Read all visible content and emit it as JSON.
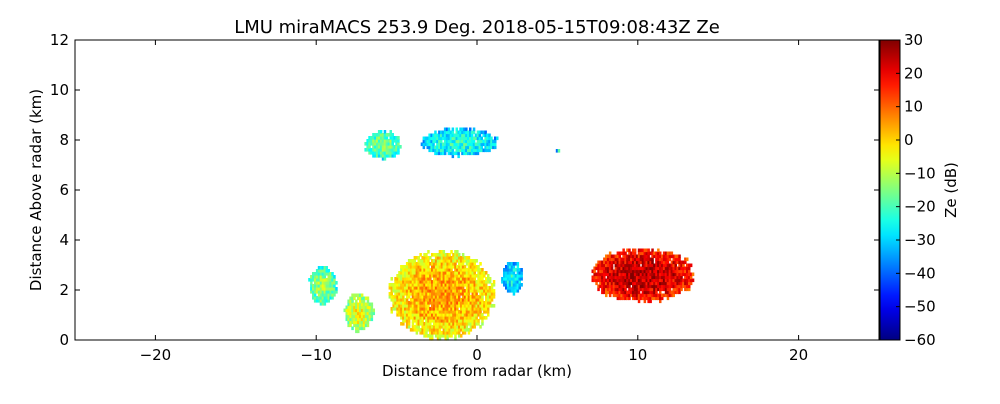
{
  "chart_data": {
    "type": "heatmap",
    "title": "LMU miraMACS 253.9 Deg. 2018-05-15T09:08:43Z  Ze",
    "xlabel": "Distance from radar (km)",
    "ylabel": "Distance Above radar  (km)",
    "xlim": [
      -25,
      25
    ],
    "ylim": [
      0,
      12
    ],
    "x_ticks": [
      -20,
      -10,
      0,
      10,
      20
    ],
    "x_tick_labels": [
      "−20",
      "−10",
      "0",
      "10",
      "20"
    ],
    "y_ticks": [
      0,
      2,
      4,
      6,
      8,
      10,
      12
    ],
    "y_tick_labels": [
      "0",
      "2",
      "4",
      "6",
      "8",
      "10",
      "12"
    ],
    "colorbar": {
      "label": "Ze (dB)",
      "range": [
        -60,
        30
      ],
      "ticks": [
        30,
        20,
        10,
        0,
        -10,
        -20,
        -30,
        -40,
        -50,
        -60
      ],
      "tick_labels": [
        "30",
        "20",
        "10",
        "0",
        "−10",
        "−20",
        "−30",
        "−40",
        "−50",
        "−60"
      ],
      "colormap": "jet"
    },
    "regions": [
      {
        "name": "upper-cloud-left",
        "x": [
          -7.0,
          -4.8
        ],
        "y": [
          7.2,
          8.3
        ],
        "ze_typical": -25
      },
      {
        "name": "upper-cloud-right",
        "x": [
          -3.5,
          1.2
        ],
        "y": [
          7.3,
          8.4
        ],
        "ze_typical": -32
      },
      {
        "name": "isolated-echo",
        "x": [
          4.9,
          5.1
        ],
        "y": [
          7.4,
          7.6
        ],
        "ze_typical": -35
      },
      {
        "name": "left-cell",
        "x": [
          -10.5,
          -8.8
        ],
        "y": [
          1.4,
          2.9
        ],
        "ze_typical": -22
      },
      {
        "name": "lower-left-cell",
        "x": [
          -8.3,
          -6.5
        ],
        "y": [
          0.3,
          1.8
        ],
        "ze_typical": -15
      },
      {
        "name": "central-convective-core",
        "x": [
          -5.5,
          1.0
        ],
        "y": [
          0.0,
          3.5
        ],
        "ze_typical": -5
      },
      {
        "name": "central-side-echo",
        "x": [
          1.5,
          2.8
        ],
        "y": [
          1.8,
          3.1
        ],
        "ze_typical": -35
      },
      {
        "name": "right-cell",
        "x": [
          7.0,
          13.5
        ],
        "y": [
          1.5,
          3.6
        ],
        "ze_typical": 15
      }
    ]
  }
}
